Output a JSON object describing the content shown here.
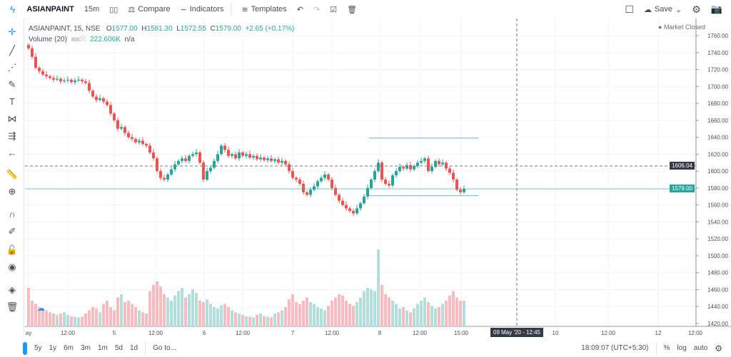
{
  "toolbar": {
    "symbol": "ASIANPAINT",
    "interval": "15m",
    "compare": "Compare",
    "indicators": "Indicators",
    "templates": "Templates",
    "save": "Save"
  },
  "legend": {
    "title": "ASIANPAINT, 15, NSE",
    "o_label": "O",
    "o": "1577.00",
    "h_label": "H",
    "h": "1581.30",
    "l_label": "L",
    "l": "1572.55",
    "c_label": "C",
    "c": "1579.00",
    "change": "+2.65 (+0.17%)",
    "volume_label": "Volume (20)",
    "volume_value": "222.606K",
    "volume_na": "n/a"
  },
  "status": "Market Closed",
  "crosshair": {
    "price": "1606.04",
    "time": "09 May '20 - 12:45"
  },
  "last_price": "1579.00",
  "bottom": {
    "ranges": [
      "5y",
      "1y",
      "6m",
      "3m",
      "1m",
      "5d",
      "1d"
    ],
    "goto": "Go to...",
    "clock": "18:09:07 (UTC+5:30)",
    "percent": "%",
    "log": "log",
    "auto": "auto"
  },
  "colors": {
    "up": "#26a69a",
    "down": "#ef5350",
    "up_vol": "#b2dfdb",
    "down_vol": "#f8bbbf",
    "accent": "#2196f3"
  },
  "chart_data": {
    "type": "candlestick",
    "ylim": [
      1420,
      1760
    ],
    "y_ticks": [
      "1760.00",
      "1740.00",
      "1720.00",
      "1700.00",
      "1680.00",
      "1660.00",
      "1640.00",
      "1620.00",
      "1600.00",
      "1580.00",
      "1560.00",
      "1540.00",
      "1520.00",
      "1500.00",
      "1480.00",
      "1460.00",
      "1440.00",
      "1420.00"
    ],
    "x_ticks": [
      "ay",
      "12:00",
      "5",
      "12:00",
      "6",
      "12:00",
      "7",
      "12:00",
      "8",
      "12:00",
      "15:00",
      "10",
      "12:00",
      "12",
      "12:00"
    ],
    "closes": [
      1745,
      1735,
      1722,
      1718,
      1714,
      1712,
      1710,
      1708,
      1709,
      1706,
      1707,
      1708,
      1705,
      1707,
      1708,
      1706,
      1704,
      1695,
      1688,
      1684,
      1686,
      1682,
      1678,
      1668,
      1660,
      1650,
      1652,
      1645,
      1640,
      1638,
      1634,
      1636,
      1632,
      1630,
      1622,
      1615,
      1600,
      1592,
      1590,
      1596,
      1602,
      1608,
      1612,
      1615,
      1612,
      1618,
      1620,
      1622,
      1610,
      1590,
      1600,
      1604,
      1612,
      1620,
      1630,
      1625,
      1618,
      1620,
      1615,
      1622,
      1618,
      1620,
      1616,
      1618,
      1614,
      1616,
      1613,
      1615,
      1612,
      1614,
      1610,
      1612,
      1608,
      1600,
      1592,
      1590,
      1585,
      1575,
      1572,
      1578,
      1582,
      1588,
      1592,
      1596,
      1590,
      1580,
      1572,
      1565,
      1560,
      1556,
      1553,
      1550,
      1556,
      1562,
      1570,
      1580,
      1590,
      1600,
      1610,
      1590,
      1585,
      1583,
      1595,
      1600,
      1605,
      1603,
      1607,
      1602,
      1606,
      1610,
      1612,
      1615,
      1600,
      1605,
      1612,
      1608,
      1610,
      1603,
      1598,
      1590,
      1578,
      1575,
      1579
    ],
    "volumes": [
      60,
      40,
      35,
      30,
      28,
      25,
      22,
      20,
      18,
      20,
      22,
      18,
      16,
      15,
      14,
      15,
      20,
      25,
      30,
      28,
      22,
      35,
      40,
      30,
      25,
      45,
      50,
      38,
      40,
      35,
      30,
      25,
      22,
      20,
      55,
      65,
      70,
      62,
      50,
      45,
      40,
      48,
      55,
      60,
      45,
      50,
      58,
      52,
      40,
      38,
      42,
      35,
      30,
      28,
      33,
      35,
      30,
      25,
      22,
      20,
      18,
      16,
      15,
      14,
      18,
      20,
      16,
      15,
      14,
      20,
      22,
      25,
      30,
      42,
      50,
      38,
      35,
      40,
      45,
      38,
      35,
      30,
      28,
      25,
      32,
      40,
      45,
      50,
      48,
      40,
      35,
      32,
      38,
      45,
      55,
      60,
      58,
      55,
      120,
      65,
      50,
      45,
      40,
      35,
      28,
      30,
      25,
      22,
      28,
      35,
      40,
      45,
      38,
      32,
      28,
      30,
      35,
      40,
      48,
      55,
      45,
      40,
      40
    ],
    "price_lines": {
      "crosshair": 1606.04,
      "last": 1579.0,
      "box_top": 1639,
      "box_bottom": 1571
    }
  }
}
